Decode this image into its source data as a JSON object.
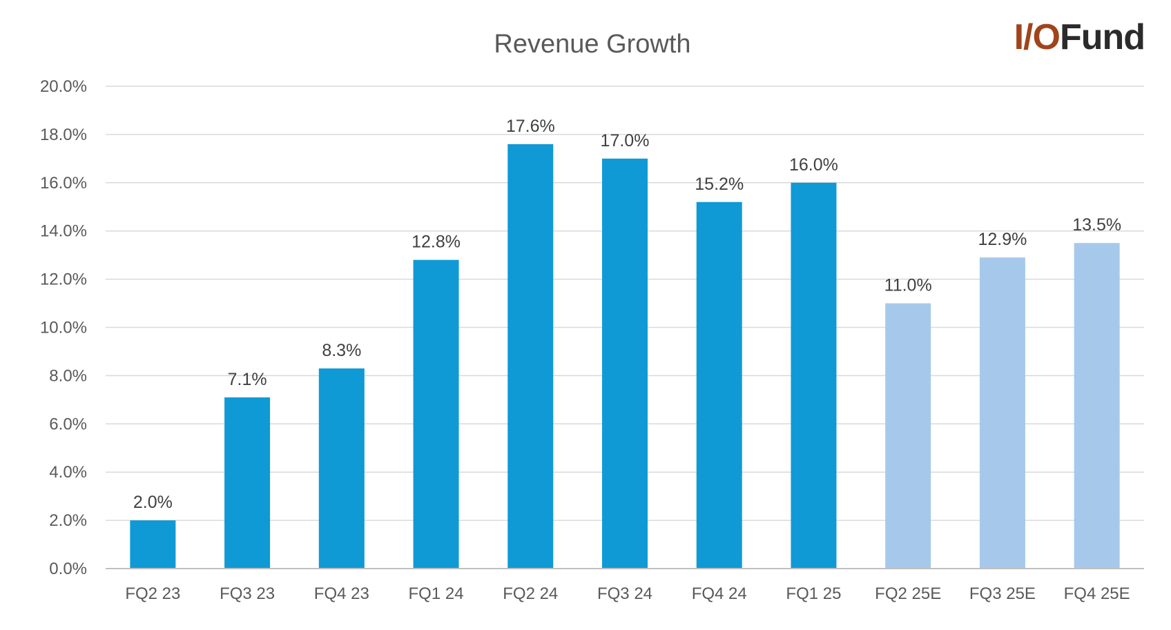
{
  "logo": {
    "io": "I/O",
    "fund": "Fund"
  },
  "colors": {
    "actual": "#0f9ad6",
    "estimate": "#a6c9eb"
  },
  "chart_data": {
    "type": "bar",
    "title": "Revenue Growth",
    "xlabel": "",
    "ylabel": "",
    "ylim": [
      0,
      20
    ],
    "yticks": [
      "0.0%",
      "2.0%",
      "4.0%",
      "6.0%",
      "8.0%",
      "10.0%",
      "12.0%",
      "14.0%",
      "16.0%",
      "18.0%",
      "20.0%"
    ],
    "grid": true,
    "categories": [
      "FQ2 23",
      "FQ3 23",
      "FQ4 23",
      "FQ1 24",
      "FQ2 24",
      "FQ3 24",
      "FQ4 24",
      "FQ1 25",
      "FQ2 25E",
      "FQ3 25E",
      "FQ4 25E"
    ],
    "values": [
      2.0,
      7.1,
      8.3,
      12.8,
      17.6,
      17.0,
      15.2,
      16.0,
      11.0,
      12.9,
      13.5
    ],
    "labels": [
      "2.0%",
      "7.1%",
      "8.3%",
      "12.8%",
      "17.6%",
      "17.0%",
      "15.2%",
      "16.0%",
      "11.0%",
      "12.9%",
      "13.5%"
    ],
    "estimate": [
      false,
      false,
      false,
      false,
      false,
      false,
      false,
      false,
      true,
      true,
      true
    ]
  }
}
